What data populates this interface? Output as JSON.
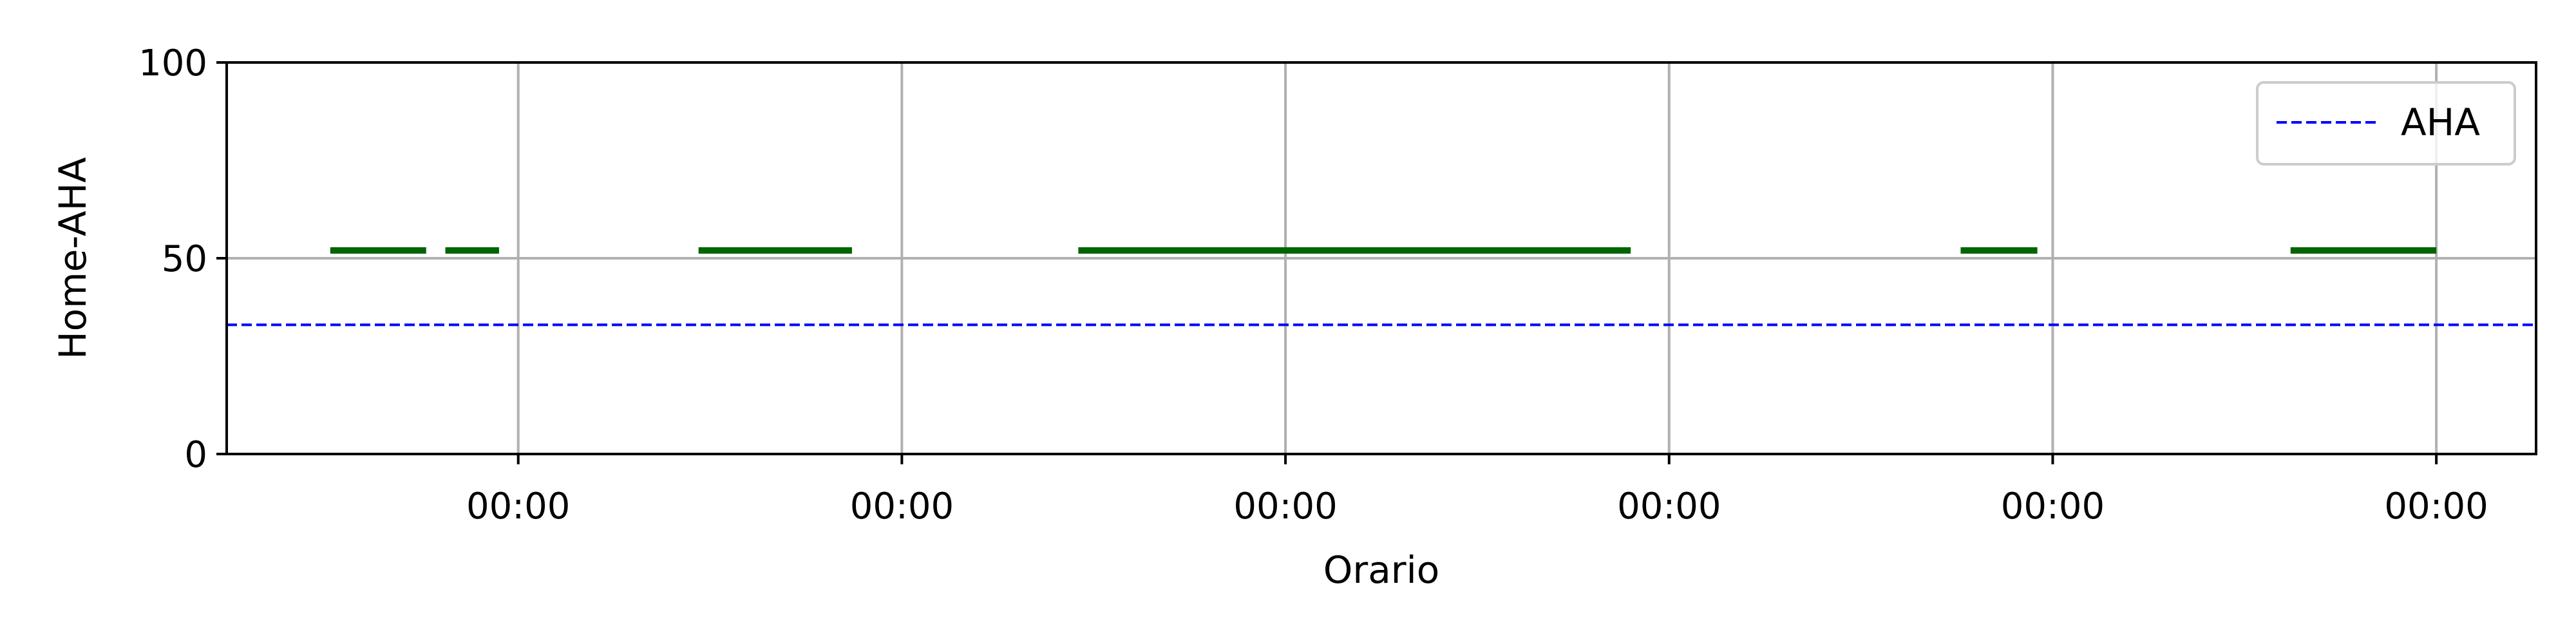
{
  "chart_data": {
    "type": "line",
    "title": "",
    "xlabel": "Orario",
    "ylabel": "Home-AHA",
    "ylim": [
      0,
      100
    ],
    "yticks": [
      0,
      50,
      100
    ],
    "xlim": [
      -0.76,
      5.26
    ],
    "xticks": [
      0,
      1,
      2,
      3,
      4,
      5
    ],
    "xtick_labels": [
      "00:00",
      "00:00",
      "00:00",
      "00:00",
      "00:00",
      "00:00"
    ],
    "grid": true,
    "legend": {
      "position": "top-right",
      "entries": [
        "AHA"
      ]
    },
    "threshold": {
      "name": "AHA",
      "value": 33,
      "color": "#0000ff",
      "style": "dashed"
    },
    "segments_color": "#006400",
    "segments": [
      {
        "x_start": -0.49,
        "x_end": -0.24,
        "y": 52
      },
      {
        "x_start": -0.19,
        "x_end": -0.05,
        "y": 52
      },
      {
        "x_start": 0.47,
        "x_end": 0.87,
        "y": 52
      },
      {
        "x_start": 1.46,
        "x_end": 2.9,
        "y": 52
      },
      {
        "x_start": 3.76,
        "x_end": 3.96,
        "y": 52
      },
      {
        "x_start": 4.62,
        "x_end": 5.0,
        "y": 52
      }
    ]
  }
}
